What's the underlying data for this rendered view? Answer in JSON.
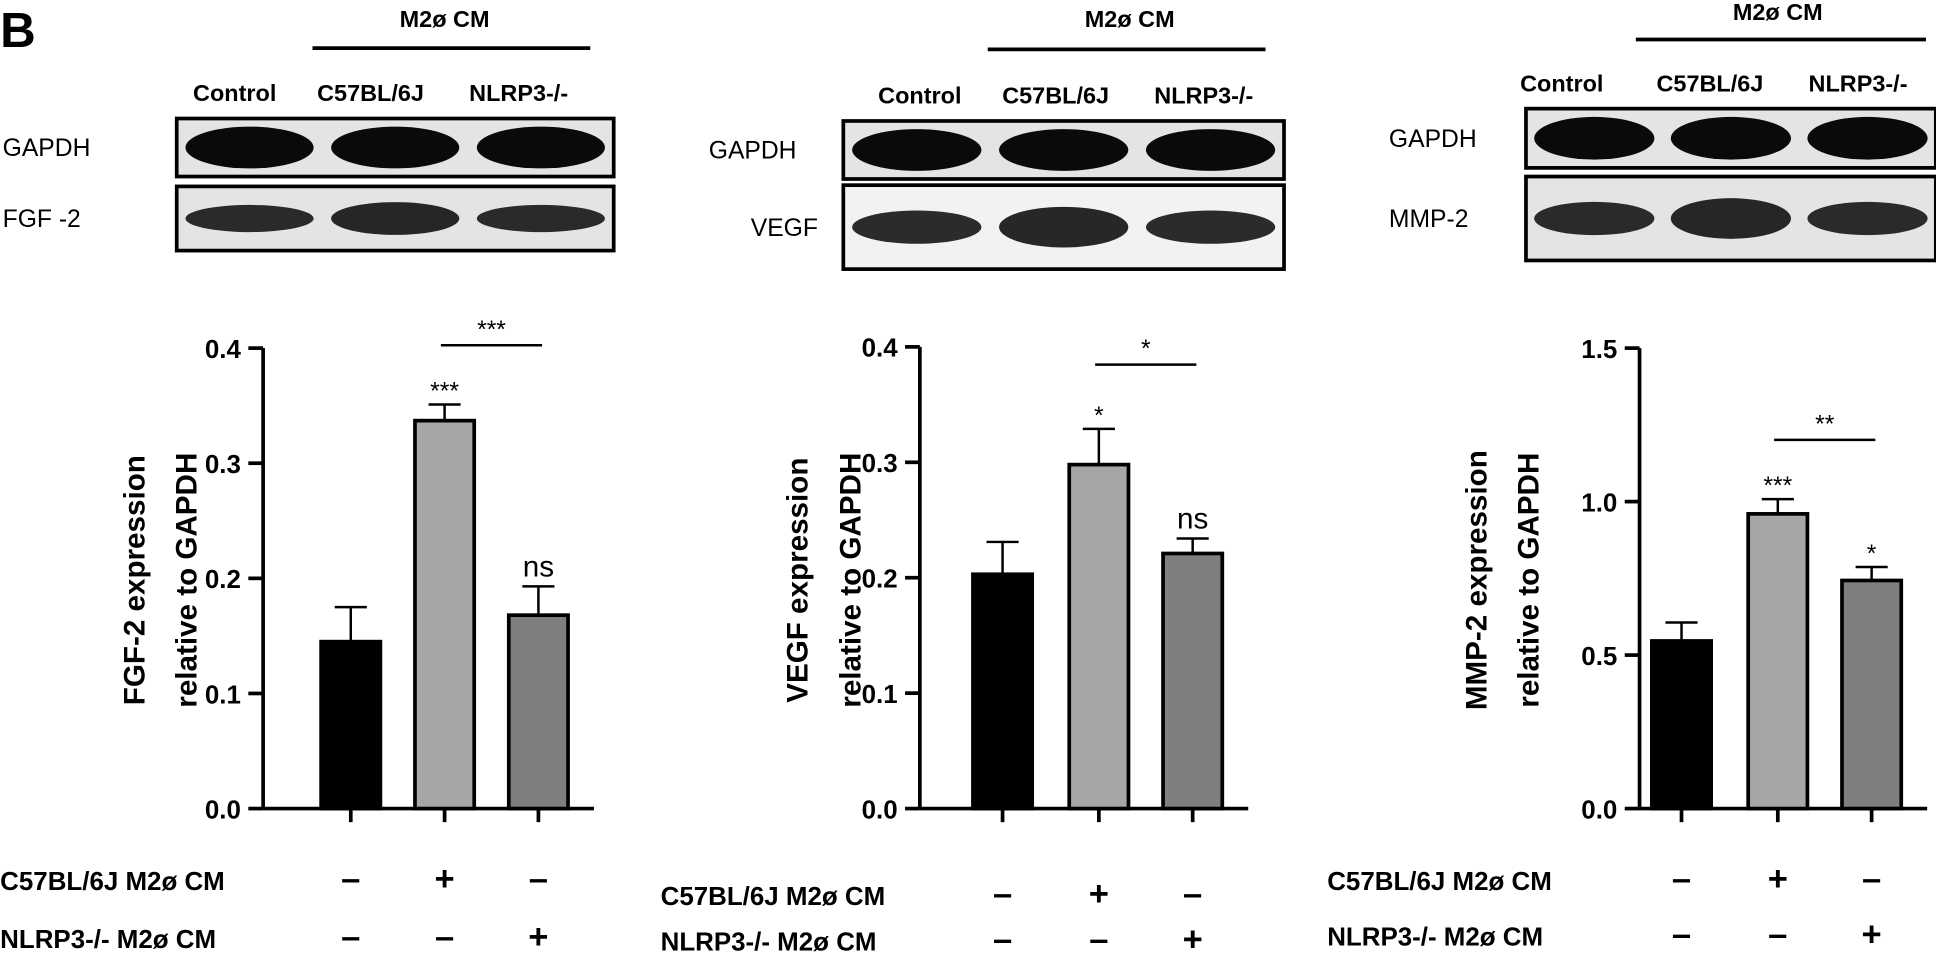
{
  "panel_label": "B",
  "blots": [
    {
      "header_group": "M2ø CM",
      "lanes": [
        "Control",
        "C57BL/6J",
        "NLRP3-/-"
      ],
      "rows": [
        "GAPDH",
        "FGF -2"
      ]
    },
    {
      "header_group": "M2ø CM",
      "lanes": [
        "Control",
        "C57BL/6J",
        "NLRP3-/-"
      ],
      "rows": [
        "GAPDH",
        "VEGF"
      ]
    },
    {
      "header_group": "M2ø CM",
      "lanes": [
        "Control",
        "C57BL/6J",
        "NLRP3-/-"
      ],
      "rows": [
        "GAPDH",
        "MMP-2"
      ]
    }
  ],
  "conditions": {
    "row1_label": "C57BL/6J M2ø CM",
    "row2_label": "NLRP3-/- M2ø CM",
    "row1_signs": [
      "–",
      "+",
      "–"
    ],
    "row2_signs": [
      "–",
      "–",
      "+"
    ]
  },
  "chart_data": [
    {
      "type": "bar",
      "ylabel": [
        "FGF-2 expression",
        "relative to GAPDH"
      ],
      "ylim": [
        0,
        0.4
      ],
      "yticks": [
        "0.0",
        "0.1",
        "0.2",
        "0.3",
        "0.4"
      ],
      "values": [
        0.145,
        0.337,
        0.168
      ],
      "errors": [
        0.03,
        0.014,
        0.025
      ],
      "colors": [
        "#000000",
        "#a6a6a8",
        "#7f7f7f"
      ],
      "bar_annotations": [
        "",
        "***",
        "ns"
      ],
      "comparison": {
        "bars": [
          1,
          2
        ],
        "label": "***"
      }
    },
    {
      "type": "bar",
      "ylabel": [
        "VEGF  expression",
        "relative to GAPDH"
      ],
      "ylim": [
        0,
        0.4
      ],
      "yticks": [
        "0.0",
        "0.1",
        "0.2",
        "0.3",
        "0.4"
      ],
      "values": [
        0.203,
        0.298,
        0.221
      ],
      "errors": [
        0.028,
        0.031,
        0.013
      ],
      "colors": [
        "#000000",
        "#a6a6a8",
        "#7f7f7f"
      ],
      "bar_annotations": [
        "",
        "*",
        "ns"
      ],
      "comparison": {
        "bars": [
          1,
          2
        ],
        "label": "*"
      }
    },
    {
      "type": "bar",
      "ylabel": [
        "MMP-2 expression",
        "relative to GAPDH"
      ],
      "ylim": [
        0,
        1.5
      ],
      "yticks": [
        "0.0",
        "0.5",
        "1.0",
        "1.5"
      ],
      "values": [
        0.546,
        0.96,
        0.743
      ],
      "errors": [
        0.06,
        0.048,
        0.044
      ],
      "colors": [
        "#000000",
        "#a6a6a8",
        "#7f7f7f"
      ],
      "bar_annotations": [
        "",
        "***",
        "*"
      ],
      "comparison": {
        "bars": [
          1,
          2
        ],
        "label": "**"
      }
    }
  ]
}
